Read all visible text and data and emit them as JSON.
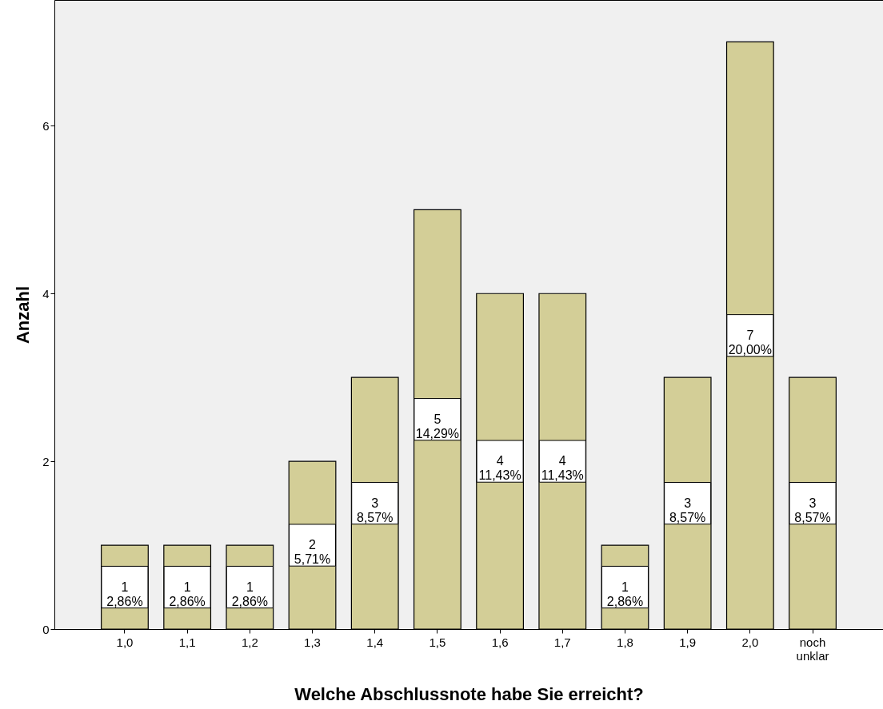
{
  "chart_data": {
    "type": "bar",
    "xlabel": "Welche Abschlussnote habe Sie erreicht?",
    "ylabel": "Anzahl",
    "categories": [
      "1,0",
      "1,1",
      "1,2",
      "1,3",
      "1,4",
      "1,5",
      "1,6",
      "1,7",
      "1,8",
      "1,9",
      "2,0",
      "noch unklar"
    ],
    "values": [
      1,
      1,
      1,
      2,
      3,
      5,
      4,
      4,
      1,
      3,
      7,
      3
    ],
    "value_labels": [
      "1\n2,86%",
      "1\n2,86%",
      "1\n2,86%",
      "2\n5,71%",
      "3\n8,57%",
      "5\n14,29%",
      "4\n11,43%",
      "4\n11,43%",
      "1\n2,86%",
      "3\n8,57%",
      "7\n20,00%",
      "3\n8,57%"
    ],
    "color": "#d3ce97",
    "ylim": [
      0,
      7.5
    ],
    "yticks": [
      0,
      2,
      4,
      6
    ],
    "grid": false
  }
}
